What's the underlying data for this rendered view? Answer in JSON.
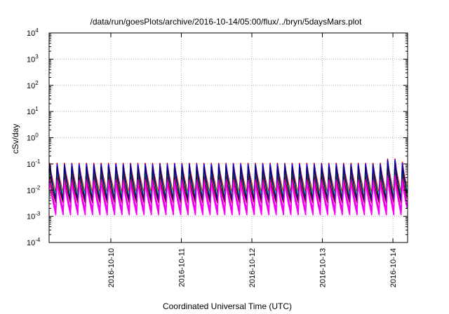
{
  "chart_data": {
    "type": "line",
    "title": "/data/run/goesPlots/archive/2016-10-14/05:00/flux/../bryn/5daysMars.plot",
    "xlabel": "Coordinated Universal Time (UTC)",
    "ylabel": "cSv/day",
    "yscale": "log",
    "ylim": [
      0.0001,
      10000
    ],
    "y_ticks": [
      {
        "base": "10",
        "exp": "-4",
        "value": 0.0001
      },
      {
        "base": "10",
        "exp": "-3",
        "value": 0.001
      },
      {
        "base": "10",
        "exp": "-2",
        "value": 0.01
      },
      {
        "base": "10",
        "exp": "-1",
        "value": 0.1
      },
      {
        "base": "10",
        "exp": "0",
        "value": 1
      },
      {
        "base": "10",
        "exp": "1",
        "value": 10
      },
      {
        "base": "10",
        "exp": "2",
        "value": 100
      },
      {
        "base": "10",
        "exp": "3",
        "value": 1000
      },
      {
        "base": "10",
        "exp": "4",
        "value": 10000
      }
    ],
    "xlim": [
      "2016-10-09T03:00",
      "2016-10-14T05:00"
    ],
    "x_ticks": [
      {
        "label": "2016-10-10",
        "value": "2016-10-10T00:00"
      },
      {
        "label": "2016-10-11",
        "value": "2016-10-11T00:00"
      },
      {
        "label": "2016-10-12",
        "value": "2016-10-12T00:00"
      },
      {
        "label": "2016-10-13",
        "value": "2016-10-13T00:00"
      },
      {
        "label": "2016-10-14",
        "value": "2016-10-14T00:00"
      }
    ],
    "grid": true,
    "legend": "none",
    "pattern": {
      "period_hours": 2.5,
      "first_peak": "2016-10-09T03:12"
    },
    "series": [
      {
        "color": "#ff0000",
        "peak": 0.11,
        "trough": 0.0075
      },
      {
        "color": "#00ff00",
        "peak": 0.09,
        "trough": 0.0055
      },
      {
        "color": "#0000ff",
        "peak": 0.1,
        "trough": 0.0042
      },
      {
        "color": "#ff00ff",
        "peak": 0.03,
        "trough": 0.0018
      },
      {
        "color": "#00ffff",
        "peak": 0.05,
        "trough": 0.0065
      },
      {
        "color": "#800000",
        "peak": 0.035,
        "trough": 0.0032
      },
      {
        "color": "#008000",
        "peak": 0.06,
        "trough": 0.005
      },
      {
        "color": "#000080",
        "peak": 0.08,
        "trough": 0.004
      },
      {
        "color": "#cc00cc",
        "peak": 0.025,
        "trough": 0.0013
      },
      {
        "color": "#ff00ff",
        "peak": 0.02,
        "trough": 0.0011
      }
    ],
    "spike_peaks": [
      {
        "x": "2016-10-12T14:00",
        "y": 0.08
      },
      {
        "x": "2016-10-13T23:30",
        "y": 0.16
      },
      {
        "x": "2016-10-14T02:00",
        "y": 0.12
      }
    ]
  }
}
